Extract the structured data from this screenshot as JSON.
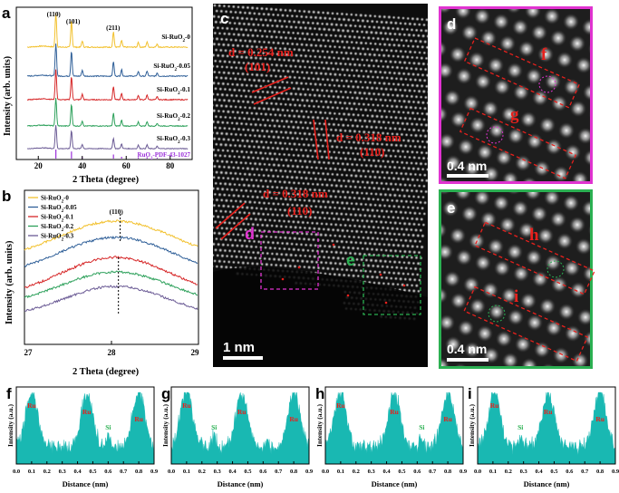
{
  "panel_labels": {
    "a": "a",
    "b": "b",
    "c": "c",
    "d": "d",
    "e": "e",
    "f": "f",
    "g": "g",
    "h": "h",
    "i": "i"
  },
  "colors": {
    "s0": "#f2c12e",
    "s1": "#2f5f98",
    "s2": "#d62728",
    "s3": "#2ca05a",
    "s4": "#6b5b95",
    "ref": "#9b30d9",
    "cyan": "#19b8b2",
    "red": "#e8201c",
    "magenta": "#e033d0",
    "green": "#2bb052"
  },
  "panel_a": {
    "ylabel": "Intensity (arb. units)",
    "xlabel": "2 Theta (degree)",
    "xticks": [
      "20",
      "40",
      "60",
      "80"
    ],
    "peak_labels": [
      "(110)",
      "(101)",
      "(211)"
    ],
    "series_labels": [
      "Si-RuO2-0",
      "Si-RuO2-0.05",
      "Si-RuO2-0.1",
      "Si-RuO2-0.2",
      "Si-RuO2-0.3"
    ],
    "series_main": [
      "Si-RuO",
      "Si-RuO",
      "Si-RuO",
      "Si-RuO",
      "Si-RuO"
    ],
    "series_sub": [
      "2",
      "2",
      "2",
      "2",
      "2"
    ],
    "series_tail": [
      "-0",
      "-0.05",
      "-0.1",
      "-0.2",
      "-0.3"
    ],
    "ref_label": "RuO2-PDF-43-1027",
    "ref_main": "RuO",
    "ref_sub": "2",
    "ref_tail": "-PDF-43-1027",
    "peaks": [
      28.0,
      35.1,
      40.0,
      54.2,
      57.9,
      65.5,
      69.5,
      74.1
    ],
    "peak_heights": [
      1.0,
      0.78,
      0.18,
      0.45,
      0.2,
      0.15,
      0.16,
      0.1
    ]
  },
  "panel_b": {
    "ylabel": "Intensity (arb. units)",
    "xlabel": "2 Theta (degree)",
    "xticks": [
      "27",
      "28",
      "29"
    ],
    "peak_label": "(110)",
    "legend": [
      "Si-RuO2-0",
      "Si-RuO2-0.05",
      "Si-RuO2-0.1",
      "Si-RuO2-0.2",
      "Si-RuO2-0.3"
    ],
    "legend_main": [
      "Si-RuO",
      "Si-RuO",
      "Si-RuO",
      "Si-RuO",
      "Si-RuO"
    ],
    "legend_sub": [
      "2",
      "2",
      "2",
      "2",
      "2"
    ],
    "legend_tail": [
      "-0",
      "-0.05",
      "-0.1",
      "-0.2",
      "-0.3"
    ]
  },
  "panel_c": {
    "annotations": [
      {
        "d": "d = 0.254 nm",
        "hkl": "(101)"
      },
      {
        "d": "d = 0.318 nm",
        "hkl": "(110)"
      },
      {
        "d": "d = 0.318 nm",
        "hkl": "(110)"
      }
    ],
    "scale": "1 nm",
    "region_labels": [
      "d",
      "e"
    ]
  },
  "panel_de": {
    "scale_d": "0.4 nm",
    "scale_e": "0.4 nm"
  },
  "profiles": {
    "ylabel": "Intensity (a.u.)",
    "xlabel": "Distance (nm)",
    "xticks": [
      "0.0",
      "0.1",
      "0.2",
      "0.3",
      "0.4",
      "0.5",
      "0.6",
      "0.7",
      "0.8",
      "0.9"
    ],
    "panels": [
      {
        "id": "f",
        "ru": [
          "Ru",
          "Ru",
          "Ru"
        ],
        "si": "Si",
        "peaks": [
          0.1,
          0.46,
          0.8
        ],
        "si_pos": 0.6
      },
      {
        "id": "g",
        "ru": [
          "Ru",
          "Ru",
          "Ru"
        ],
        "si": "Si",
        "peaks": [
          0.1,
          0.46,
          0.8
        ],
        "si_pos": 0.28
      },
      {
        "id": "h",
        "ru": [
          "Ru",
          "Ru",
          "Ru"
        ],
        "si": "Si",
        "peaks": [
          0.1,
          0.45,
          0.8
        ],
        "si_pos": 0.63
      },
      {
        "id": "i",
        "ru": [
          "Ru",
          "Ru",
          "Ru"
        ],
        "si": "Si",
        "peaks": [
          0.11,
          0.46,
          0.8
        ],
        "si_pos": 0.28
      }
    ]
  }
}
